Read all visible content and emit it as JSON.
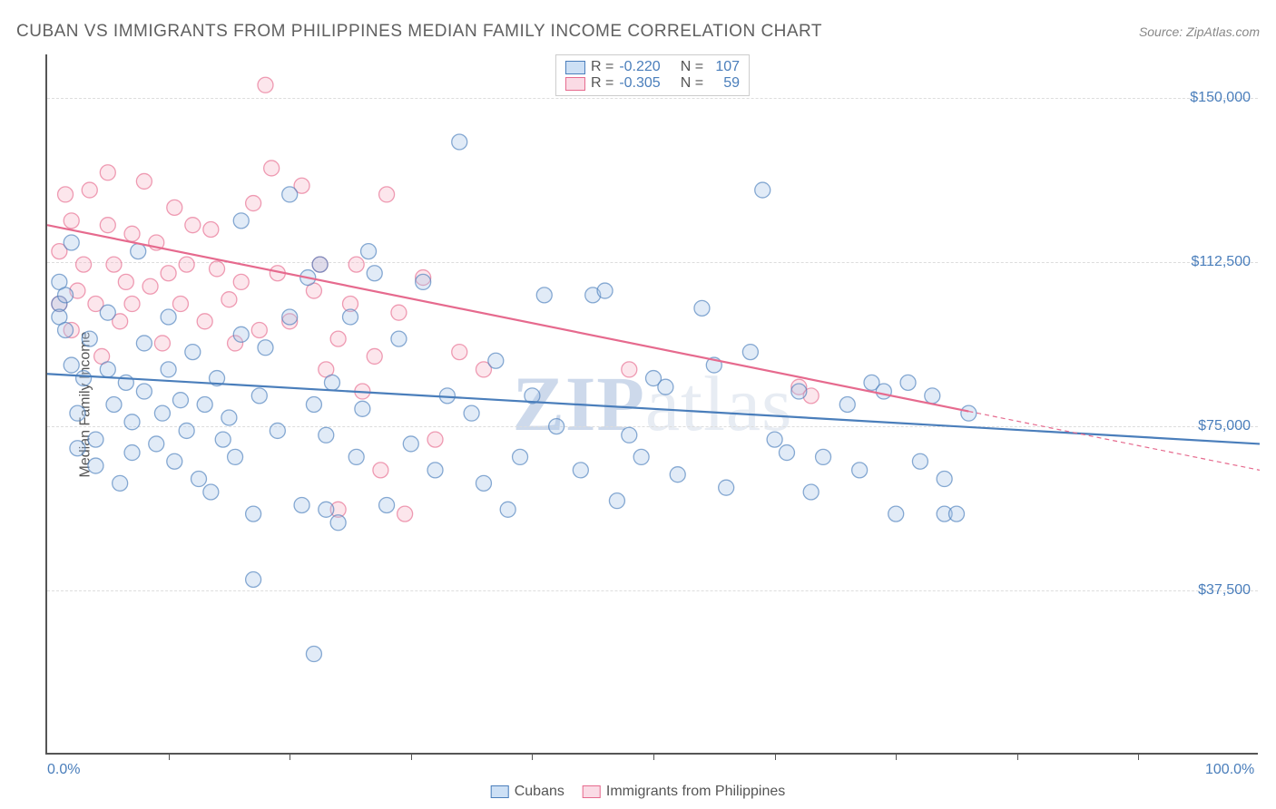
{
  "title": "CUBAN VS IMMIGRANTS FROM PHILIPPINES MEDIAN FAMILY INCOME CORRELATION CHART",
  "source": "Source: ZipAtlas.com",
  "ylabel": "Median Family Income",
  "watermark": "ZIPatlas",
  "chart": {
    "type": "scatter",
    "background_color": "#ffffff",
    "border_color": "#555555",
    "grid_color": "#dddddd",
    "grid_dash": "4,4",
    "xlim": [
      0,
      100
    ],
    "ylim": [
      0,
      160000
    ],
    "xtick_marks": [
      10,
      20,
      30,
      40,
      50,
      60,
      70,
      80,
      90
    ],
    "xtick_labels": [
      {
        "pos": 0,
        "label": "0.0%"
      },
      {
        "pos": 100,
        "label": "100.0%"
      }
    ],
    "ytick_labels": [
      {
        "value": 37500,
        "label": "$37,500"
      },
      {
        "value": 75000,
        "label": "$75,000"
      },
      {
        "value": 112500,
        "label": "$112,500"
      },
      {
        "value": 150000,
        "label": "$150,000"
      }
    ],
    "marker_radius": 8.5,
    "marker_stroke_width": 1.3,
    "marker_fill_opacity": 0.35,
    "trend_line_width": 2.2,
    "series": [
      {
        "name": "Cubans",
        "color_stroke": "#4a7ebb",
        "color_fill": "#a8c6e8",
        "swatch_fill": "#cde0f5",
        "R": "-0.220",
        "N": "107",
        "trend": {
          "x1": 0,
          "y1": 87000,
          "x2": 100,
          "y2": 71000,
          "solid_until_x": 100
        },
        "points": [
          [
            1,
            108000
          ],
          [
            1,
            103000
          ],
          [
            1,
            100000
          ],
          [
            1.5,
            97000
          ],
          [
            1.5,
            105000
          ],
          [
            2,
            117000
          ],
          [
            2,
            89000
          ],
          [
            2.5,
            70000
          ],
          [
            2.5,
            78000
          ],
          [
            3,
            86000
          ],
          [
            3.5,
            95000
          ],
          [
            4,
            72000
          ],
          [
            4,
            66000
          ],
          [
            5,
            88000
          ],
          [
            5,
            101000
          ],
          [
            5.5,
            80000
          ],
          [
            6,
            62000
          ],
          [
            6.5,
            85000
          ],
          [
            7,
            76000
          ],
          [
            7,
            69000
          ],
          [
            7.5,
            115000
          ],
          [
            8,
            94000
          ],
          [
            8,
            83000
          ],
          [
            9,
            71000
          ],
          [
            9.5,
            78000
          ],
          [
            10,
            100000
          ],
          [
            10,
            88000
          ],
          [
            10.5,
            67000
          ],
          [
            11,
            81000
          ],
          [
            11.5,
            74000
          ],
          [
            12,
            92000
          ],
          [
            12.5,
            63000
          ],
          [
            13,
            80000
          ],
          [
            13.5,
            60000
          ],
          [
            14,
            86000
          ],
          [
            14.5,
            72000
          ],
          [
            15,
            77000
          ],
          [
            15.5,
            68000
          ],
          [
            16,
            122000
          ],
          [
            17,
            40000
          ],
          [
            17,
            55000
          ],
          [
            17.5,
            82000
          ],
          [
            18,
            93000
          ],
          [
            19,
            74000
          ],
          [
            20,
            100000
          ],
          [
            20,
            128000
          ],
          [
            21,
            57000
          ],
          [
            21.5,
            109000
          ],
          [
            22,
            80000
          ],
          [
            22.5,
            112000
          ],
          [
            22,
            23000
          ],
          [
            23,
            73000
          ],
          [
            23,
            56000
          ],
          [
            23.5,
            85000
          ],
          [
            24,
            53000
          ],
          [
            25,
            100000
          ],
          [
            25.5,
            68000
          ],
          [
            26,
            79000
          ],
          [
            27,
            110000
          ],
          [
            28,
            57000
          ],
          [
            29,
            95000
          ],
          [
            30,
            71000
          ],
          [
            31,
            108000
          ],
          [
            32,
            65000
          ],
          [
            33,
            82000
          ],
          [
            34,
            140000
          ],
          [
            35,
            78000
          ],
          [
            36,
            62000
          ],
          [
            37,
            90000
          ],
          [
            38,
            56000
          ],
          [
            39,
            68000
          ],
          [
            40,
            82000
          ],
          [
            41,
            105000
          ],
          [
            42,
            75000
          ],
          [
            44,
            65000
          ],
          [
            45,
            105000
          ],
          [
            46,
            106000
          ],
          [
            47,
            58000
          ],
          [
            48,
            73000
          ],
          [
            49,
            68000
          ],
          [
            50,
            86000
          ],
          [
            51,
            84000
          ],
          [
            52,
            64000
          ],
          [
            54,
            102000
          ],
          [
            55,
            89000
          ],
          [
            56,
            61000
          ],
          [
            58,
            92000
          ],
          [
            59,
            129000
          ],
          [
            60,
            72000
          ],
          [
            61,
            69000
          ],
          [
            62,
            83000
          ],
          [
            63,
            60000
          ],
          [
            64,
            68000
          ],
          [
            66,
            80000
          ],
          [
            67,
            65000
          ],
          [
            68,
            85000
          ],
          [
            69,
            83000
          ],
          [
            70,
            55000
          ],
          [
            71,
            85000
          ],
          [
            72,
            67000
          ],
          [
            73,
            82000
          ],
          [
            74,
            63000
          ],
          [
            74,
            55000
          ],
          [
            75,
            55000
          ],
          [
            76,
            78000
          ],
          [
            16,
            96000
          ],
          [
            26.5,
            115000
          ]
        ]
      },
      {
        "name": "Immigrants from Philippines",
        "color_stroke": "#e66a8e",
        "color_fill": "#f5b8c9",
        "swatch_fill": "#fadbe5",
        "R": "-0.305",
        "N": "59",
        "trend": {
          "x1": 0,
          "y1": 121000,
          "x2": 100,
          "y2": 65000,
          "solid_until_x": 76
        },
        "points": [
          [
            1,
            115000
          ],
          [
            1.5,
            128000
          ],
          [
            1,
            103000
          ],
          [
            2,
            122000
          ],
          [
            2.5,
            106000
          ],
          [
            2,
            97000
          ],
          [
            3,
            112000
          ],
          [
            3.5,
            129000
          ],
          [
            4,
            103000
          ],
          [
            4.5,
            91000
          ],
          [
            5,
            121000
          ],
          [
            5,
            133000
          ],
          [
            5.5,
            112000
          ],
          [
            6,
            99000
          ],
          [
            6.5,
            108000
          ],
          [
            7,
            119000
          ],
          [
            7,
            103000
          ],
          [
            8,
            131000
          ],
          [
            8.5,
            107000
          ],
          [
            9,
            117000
          ],
          [
            9.5,
            94000
          ],
          [
            10,
            110000
          ],
          [
            10.5,
            125000
          ],
          [
            11,
            103000
          ],
          [
            11.5,
            112000
          ],
          [
            12,
            121000
          ],
          [
            13,
            99000
          ],
          [
            13.5,
            120000
          ],
          [
            14,
            111000
          ],
          [
            15,
            104000
          ],
          [
            15.5,
            94000
          ],
          [
            16,
            108000
          ],
          [
            17,
            126000
          ],
          [
            17.5,
            97000
          ],
          [
            18,
            153000
          ],
          [
            18.5,
            134000
          ],
          [
            19,
            110000
          ],
          [
            20,
            99000
          ],
          [
            21,
            130000
          ],
          [
            22,
            106000
          ],
          [
            22.5,
            112000
          ],
          [
            23,
            88000
          ],
          [
            24,
            95000
          ],
          [
            24,
            56000
          ],
          [
            25,
            103000
          ],
          [
            25.5,
            112000
          ],
          [
            26,
            83000
          ],
          [
            27,
            91000
          ],
          [
            27.5,
            65000
          ],
          [
            28,
            128000
          ],
          [
            29,
            101000
          ],
          [
            29.5,
            55000
          ],
          [
            31,
            109000
          ],
          [
            32,
            72000
          ],
          [
            34,
            92000
          ],
          [
            36,
            88000
          ],
          [
            48,
            88000
          ],
          [
            62,
            84000
          ],
          [
            63,
            82000
          ]
        ]
      }
    ],
    "legend_top": {
      "headers": [
        "R =",
        "N ="
      ]
    },
    "legend_bottom": [
      {
        "label": "Cubans",
        "series_idx": 0
      },
      {
        "label": "Immigrants from Philippines",
        "series_idx": 1
      }
    ],
    "tick_label_color": "#4a7ebb",
    "axis_label_color": "#555555",
    "title_color": "#606060",
    "title_fontsize": 19,
    "label_fontsize": 16
  }
}
